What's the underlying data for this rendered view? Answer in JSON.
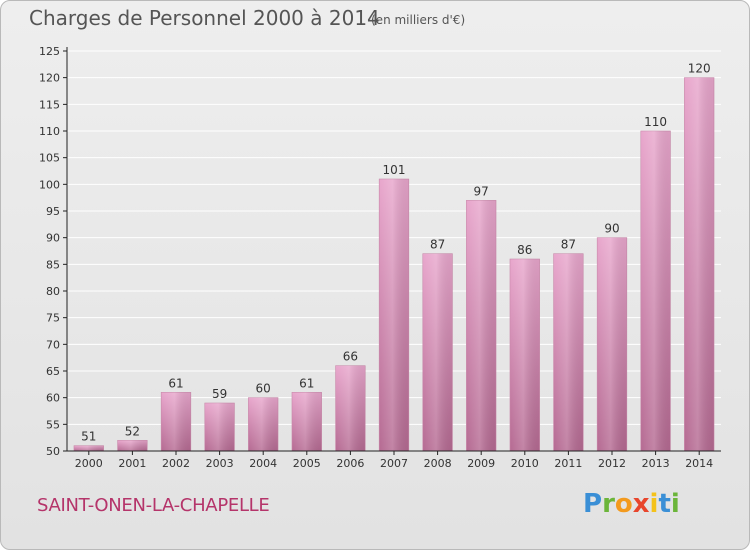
{
  "header": {
    "title": "Charges de Personnel 2000 à 2014",
    "unit": "(en milliers d'€)"
  },
  "footer": {
    "commune": "SAINT-ONEN-LA-CHAPELLE",
    "logo": "Proxiti"
  },
  "colors": {
    "bar_light": "#e8a6cc",
    "bar_dark": "#b56a92",
    "axis": "#222222",
    "grid": "#ffffff",
    "commune": "#b5346a"
  },
  "chart_data": {
    "type": "bar",
    "title": "Charges de Personnel 2000 à 2014",
    "subtitle": "(en milliers d'€)",
    "categories": [
      "2000",
      "2001",
      "2002",
      "2003",
      "2004",
      "2005",
      "2006",
      "2007",
      "2008",
      "2009",
      "2010",
      "2011",
      "2012",
      "2013",
      "2014"
    ],
    "values": [
      51,
      52,
      61,
      59,
      60,
      61,
      66,
      101,
      87,
      97,
      86,
      87,
      90,
      110,
      120
    ],
    "ylim": [
      50,
      125
    ],
    "yticks": [
      50,
      55,
      60,
      65,
      70,
      75,
      80,
      85,
      90,
      95,
      100,
      105,
      110,
      115,
      120,
      125
    ],
    "grid": true,
    "legend": "none"
  }
}
